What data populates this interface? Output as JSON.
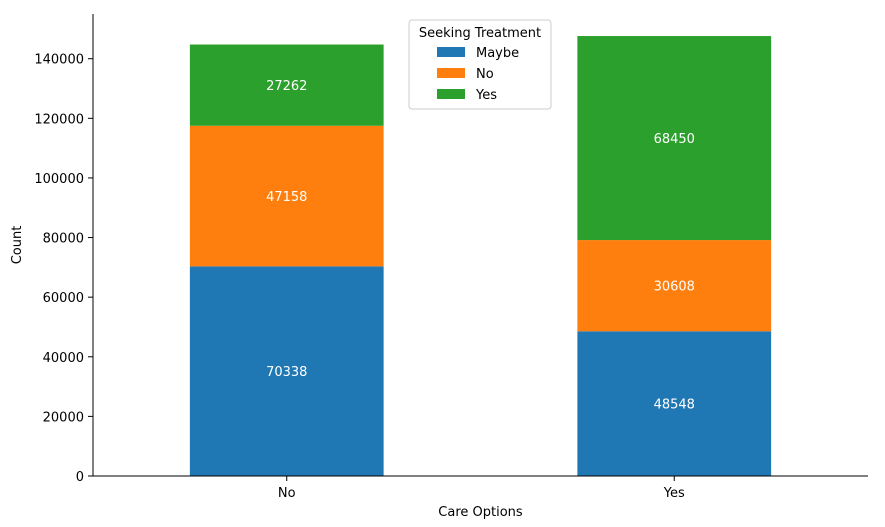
{
  "chart_data": {
    "type": "bar",
    "stacked": true,
    "title": "",
    "xlabel": "Care Options",
    "ylabel": "Count",
    "ylim": [
      0,
      155000
    ],
    "yticks": [
      0,
      20000,
      40000,
      60000,
      80000,
      100000,
      120000,
      140000
    ],
    "categories": [
      "No",
      "Yes"
    ],
    "series": [
      {
        "name": "Maybe",
        "color": "#1f77b4",
        "values": [
          70338,
          48548
        ]
      },
      {
        "name": "No",
        "color": "#ff7f0e",
        "values": [
          47158,
          30608
        ]
      },
      {
        "name": "Yes",
        "color": "#2ca02c",
        "values": [
          27262,
          68450
        ]
      }
    ],
    "legend": {
      "title": "Seeking Treatment",
      "position": "top-center"
    },
    "grid": false
  }
}
